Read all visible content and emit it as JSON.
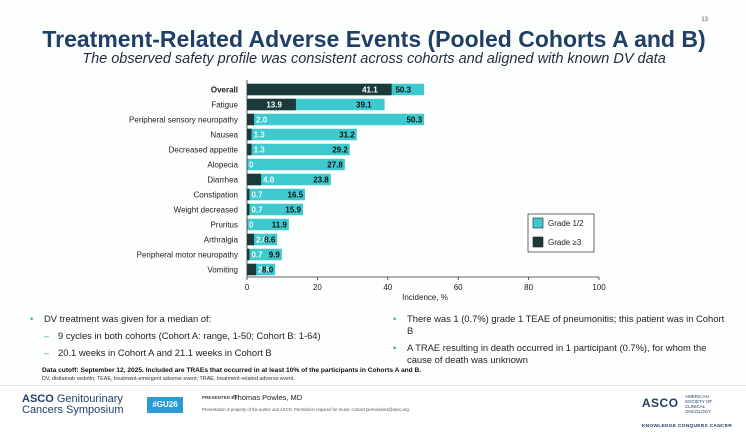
{
  "slide": {
    "page_number": "13",
    "title": "Treatment-Related Adverse Events (Pooled Cohorts A and B)",
    "subtitle": "The observed safety profile was consistent across cohorts and aligned with known DV data"
  },
  "colors": {
    "grade12": "#3ec9cf",
    "grade3": "#1b3b3b",
    "title": "#1f3f66",
    "accent": "#3aa5a5"
  },
  "chart_data": {
    "type": "bar",
    "orientation": "horizontal",
    "stacked": "overlay",
    "categories": [
      "Overall",
      "Fatigue",
      "Peripheral sensory neuropathy",
      "Nausea",
      "Decreased appetite",
      "Alopecia",
      "Diarrhea",
      "Constipation",
      "Weight decreased",
      "Pruritus",
      "Arthralgia",
      "Peripheral motor neuropathy",
      "Vomiting"
    ],
    "series": [
      {
        "name": "Grade 1/2",
        "values": [
          50.3,
          39.1,
          50.3,
          31.2,
          29.2,
          27.8,
          23.8,
          16.5,
          15.9,
          11.9,
          8.6,
          9.9,
          8.0
        ],
        "labels": [
          "50.3",
          "39.1",
          "50.3",
          "31.2",
          "29.2",
          "27.8",
          "23.8",
          "16.5",
          "15.9",
          "11.9",
          "8.6",
          "9.9",
          "8.0"
        ]
      },
      {
        "name": "Grade ≥3",
        "values": [
          41.1,
          13.9,
          2.0,
          1.3,
          1.3,
          0,
          4.0,
          0.7,
          0.7,
          0,
          2.0,
          0.7,
          2.6
        ],
        "labels": [
          "41.1",
          "13.9",
          "2.0",
          "1.3",
          "1.3",
          "0",
          "4.0",
          "0.7",
          "0.7",
          "0",
          "2.0",
          "0.7",
          "2.6"
        ]
      }
    ],
    "xlabel": "Incidence, %",
    "ticks": [
      0,
      20,
      40,
      60,
      80,
      100
    ],
    "xlim": [
      0,
      100
    ],
    "legend": [
      "Grade 1/2",
      "Grade ≥3"
    ]
  },
  "bullets_left": {
    "main": "DV treatment was given for a median of:",
    "sub1": "9 cycles in both cohorts (Cohort A: range, 1-50; Cohort B: 1-64)",
    "sub2": "20.1 weeks in Cohort A and 21.1 weeks in Cohort B"
  },
  "bullets_right": {
    "b1": "There was 1 (0.7%) grade 1 TEAE of pneumonitis; this patient was in Cohort B",
    "b2": "A TRAE resulting in death occurred in 1 participant (0.7%), for whom the cause of death was unknown"
  },
  "footnotes": {
    "line1": "Data cutoff: September 12, 2025. Included are TRAEs that occurred in at least 10% of the participants in Cohorts A and B.",
    "line2": "DV, disitamab vedotin; TEAE, treatment-emergent adverse event; TRAE, treatment-related adverse event."
  },
  "footer": {
    "logo_asco": "ASCO",
    "logo_line1": "Genitourinary",
    "logo_line2": "Cancers Symposium",
    "hashtag": "#GU26",
    "presented_by": "PRESENTED BY:",
    "presenter": "Thomas Powles, MD",
    "property_note": "Presentation is property of the author and ASCO. Permission required for reuse; contact permissions@asco.org.",
    "right_logo": "ASCO",
    "right_logo_sub": "AMERICAN SOCIETY OF CLINICAL ONCOLOGY",
    "right_tagline": "KNOWLEDGE CONQUERS CANCER"
  }
}
